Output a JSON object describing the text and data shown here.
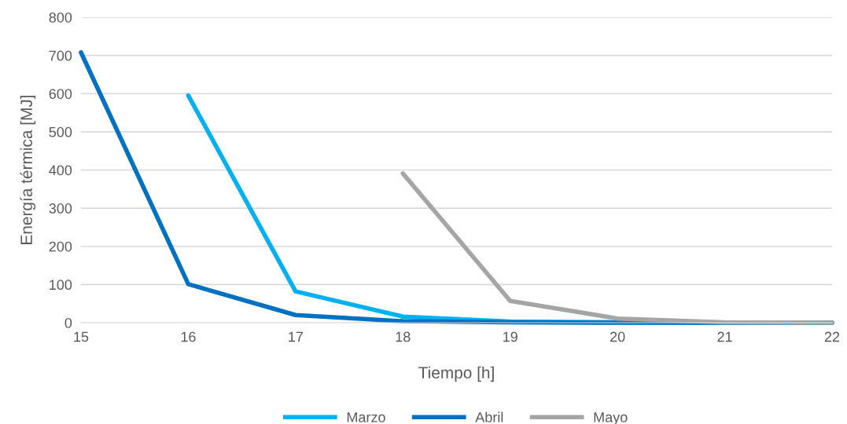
{
  "chart_data": {
    "type": "line",
    "xlabel": "Tiempo [h]",
    "ylabel": "Energía térmica [MJ]",
    "x": [
      15,
      16,
      17,
      18,
      19,
      20,
      21,
      22
    ],
    "series": [
      {
        "name": "Marzo",
        "color": "#00b0f0",
        "values": [
          null,
          595,
          82,
          16,
          3,
          1,
          0,
          0
        ]
      },
      {
        "name": "Abril",
        "color": "#0070c0",
        "values": [
          708,
          101,
          20,
          4,
          1,
          0,
          0,
          0
        ]
      },
      {
        "name": "Mayo",
        "color": "#a5a5a5",
        "values": [
          null,
          null,
          null,
          391,
          57,
          11,
          1,
          0
        ]
      }
    ],
    "xlim": [
      15,
      22
    ],
    "xticks": [
      15,
      16,
      17,
      18,
      19,
      20,
      21,
      22
    ],
    "ylim": [
      0,
      800
    ],
    "yticks": [
      0,
      100,
      200,
      300,
      400,
      500,
      600,
      700,
      800
    ],
    "grid": "y",
    "legend": "bottom",
    "marker": "none",
    "line_style": "solid"
  }
}
